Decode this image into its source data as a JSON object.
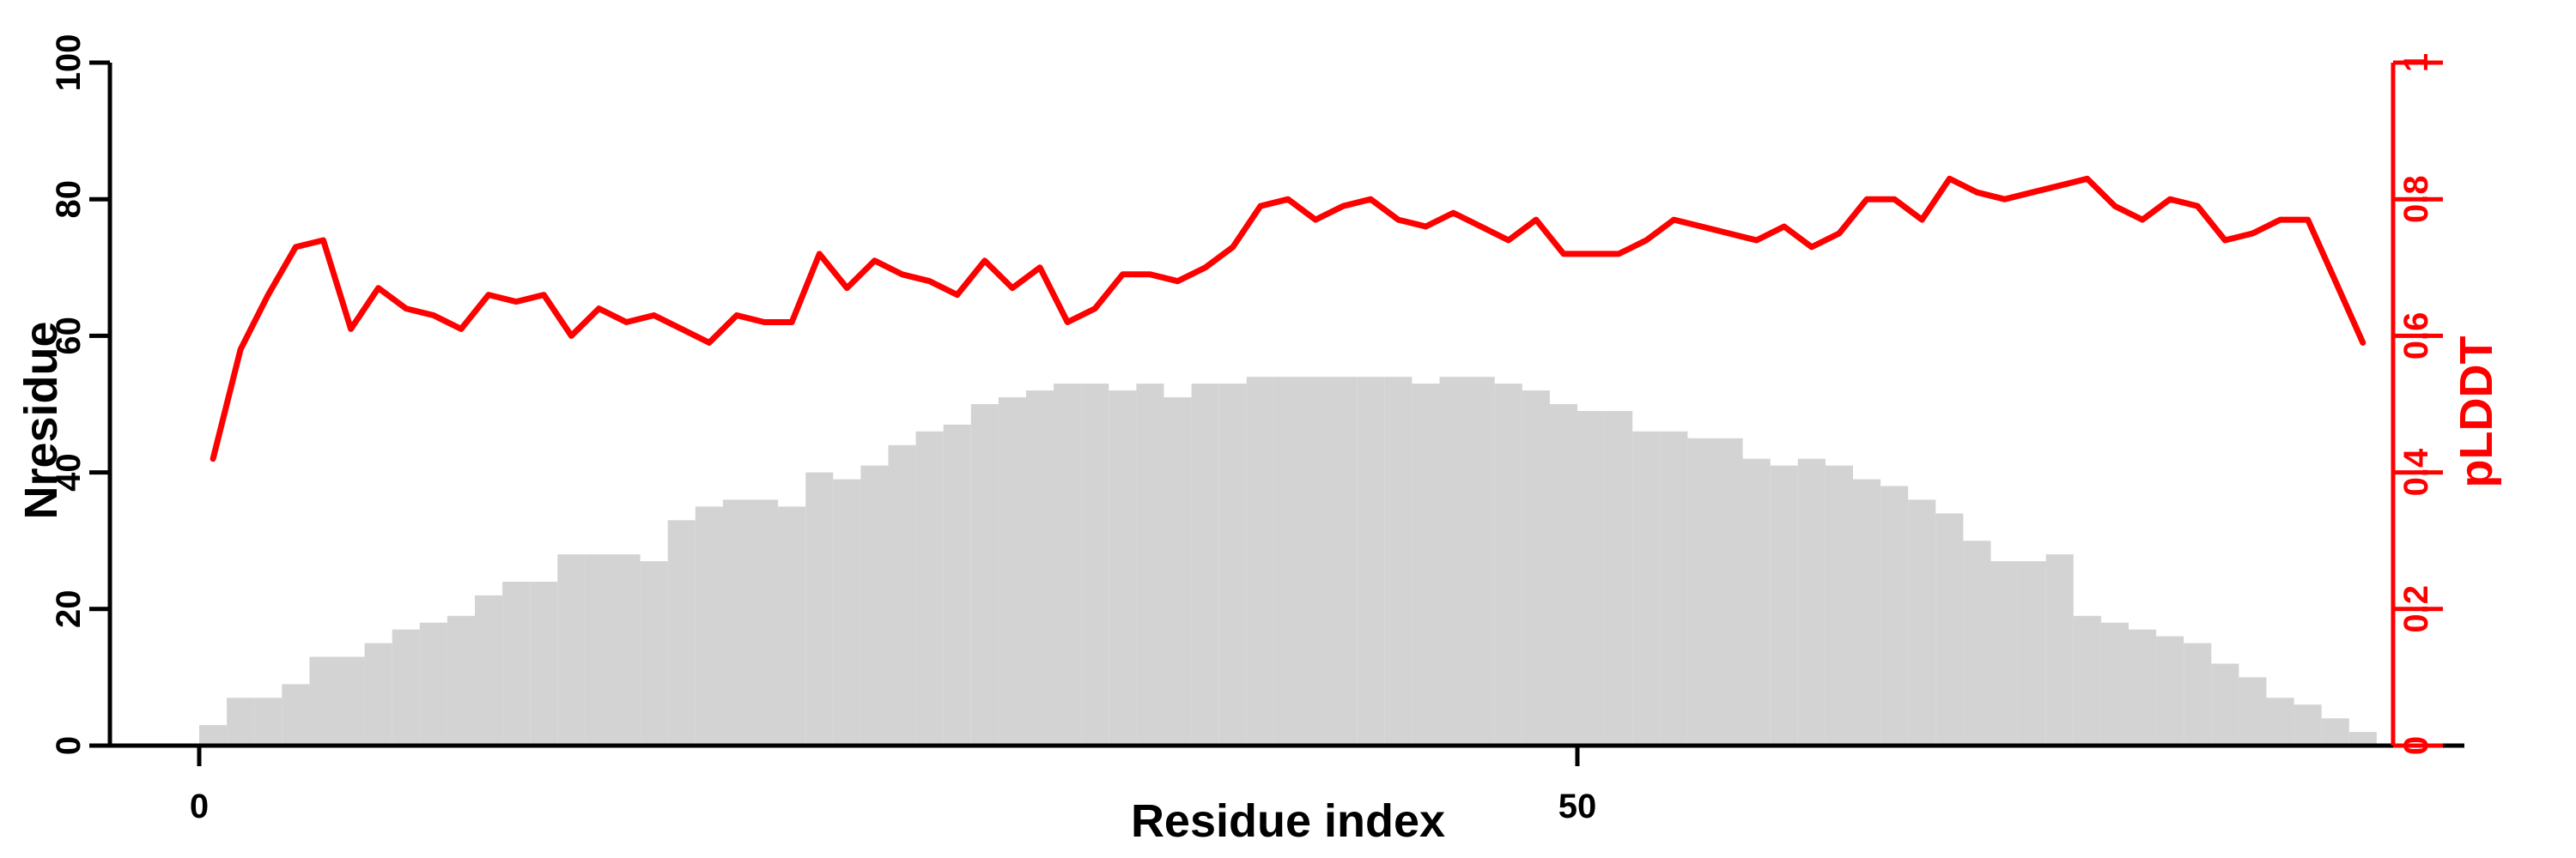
{
  "chart_data": {
    "type": "bar+line",
    "title": "",
    "xlabel": "Residue index",
    "ylabel_left": "Nresidue",
    "ylabel_right": "pLDDT",
    "x_axis": {
      "range": [
        0,
        79
      ],
      "ticks": [
        {
          "v": 0,
          "label": "0"
        },
        {
          "v": 50,
          "label": "50"
        }
      ]
    },
    "left_axis": {
      "range": [
        0,
        100
      ],
      "ticks": [
        {
          "v": 0,
          "label": "0"
        },
        {
          "v": 20,
          "label": "20"
        },
        {
          "v": 40,
          "label": "40"
        },
        {
          "v": 60,
          "label": "60"
        },
        {
          "v": 80,
          "label": "80"
        },
        {
          "v": 100,
          "label": "100"
        }
      ]
    },
    "right_axis": {
      "range": [
        0,
        1
      ],
      "ticks": [
        {
          "v": 0,
          "label": "0"
        },
        {
          "v": 0.2,
          "label": "0.2"
        },
        {
          "v": 0.4,
          "label": "0.4"
        },
        {
          "v": 0.6,
          "label": "0.6"
        },
        {
          "v": 0.8,
          "label": "0.8"
        },
        {
          "v": 1,
          "label": "1"
        }
      ]
    },
    "grid": "off",
    "legend": null,
    "colors": {
      "bar": "#d3d3d3",
      "line": "#ff0000",
      "axis": "#000000"
    },
    "bars": {
      "name": "Nresidue histogram",
      "x_start": 0,
      "bin_width": 1,
      "values": [
        3,
        7,
        7,
        9,
        13,
        13,
        15,
        17,
        18,
        19,
        22,
        24,
        24,
        28,
        28,
        28,
        27,
        33,
        35,
        36,
        36,
        35,
        40,
        39,
        41,
        44,
        46,
        47,
        50,
        51,
        52,
        53,
        53,
        52,
        53,
        51,
        53,
        53,
        54,
        54,
        54,
        54,
        54,
        54,
        53,
        54,
        54,
        53,
        52,
        50,
        49,
        49,
        46,
        46,
        45,
        45,
        42,
        41,
        42,
        41,
        39,
        38,
        36,
        34,
        30,
        27,
        27,
        28,
        19,
        18,
        17,
        16,
        15,
        12,
        10,
        7,
        6,
        4,
        2
      ]
    },
    "line": {
      "name": "pLDDT",
      "x_offset": 0.5,
      "values": [
        0.42,
        0.58,
        0.66,
        0.73,
        0.74,
        0.61,
        0.67,
        0.64,
        0.63,
        0.61,
        0.66,
        0.65,
        0.66,
        0.6,
        0.64,
        0.62,
        0.63,
        0.61,
        0.59,
        0.63,
        0.62,
        0.62,
        0.72,
        0.67,
        0.71,
        0.69,
        0.68,
        0.66,
        0.71,
        0.67,
        0.7,
        0.62,
        0.64,
        0.69,
        0.69,
        0.68,
        0.7,
        0.73,
        0.79,
        0.8,
        0.77,
        0.79,
        0.8,
        0.77,
        0.76,
        0.78,
        0.76,
        0.74,
        0.77,
        0.72,
        0.72,
        0.72,
        0.74,
        0.77,
        0.76,
        0.75,
        0.74,
        0.76,
        0.73,
        0.75,
        0.8,
        0.8,
        0.77,
        0.83,
        0.81,
        0.8,
        0.81,
        0.82,
        0.83,
        0.79,
        0.77,
        0.8,
        0.79,
        0.74,
        0.75,
        0.77,
        0.77,
        0.68,
        0.59
      ]
    }
  }
}
